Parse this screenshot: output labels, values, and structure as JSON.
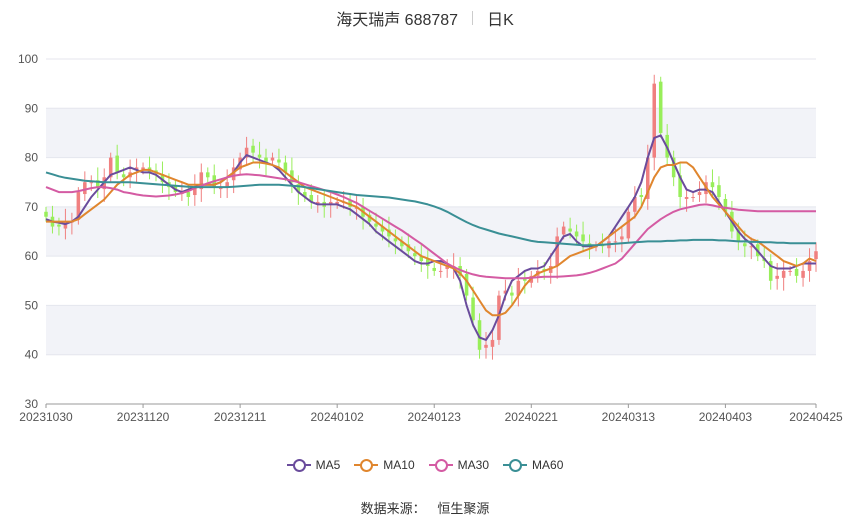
{
  "header": {
    "name": "海天瑞声 688787",
    "period": "日K"
  },
  "source": {
    "label": "数据来源：",
    "value": "恒生聚源"
  },
  "chart_data": {
    "type": "candlestick",
    "ylim": [
      30,
      100
    ],
    "y_ticks": [
      30,
      40,
      50,
      60,
      70,
      80,
      90,
      100
    ],
    "x_tick_labels": [
      "20231030",
      "20231120",
      "20231211",
      "20240102",
      "20240123",
      "20240221",
      "20240313",
      "20240403",
      "20240425"
    ],
    "x_tick_index": [
      0,
      15,
      30,
      45,
      60,
      75,
      90,
      105,
      119
    ],
    "up_color": "#f08080",
    "down_color": "#98ee5a",
    "grid": true,
    "legend_position": "bottom",
    "close_approx": [
      68,
      66,
      66,
      67,
      67,
      73,
      75,
      75,
      74,
      76,
      80,
      77,
      76,
      77,
      78,
      78,
      77,
      77,
      75,
      74,
      73,
      73,
      72,
      74,
      77,
      76,
      74,
      74,
      75,
      78,
      80,
      82,
      81,
      80,
      79,
      80,
      79,
      77,
      75,
      73,
      72,
      71,
      71,
      70,
      71,
      71,
      71,
      70,
      70,
      68,
      67,
      66,
      65,
      64,
      63,
      62,
      61,
      60,
      59,
      58,
      57,
      57,
      58,
      58,
      56,
      52,
      47,
      41,
      42,
      43,
      52,
      53,
      52,
      55,
      55,
      56,
      57,
      57,
      58,
      64,
      66,
      65,
      64,
      63,
      62,
      62,
      62,
      63,
      63,
      64,
      69,
      72,
      72,
      80,
      95,
      85,
      80,
      76,
      72,
      72,
      72,
      73,
      75,
      74,
      72,
      69,
      65,
      63,
      62,
      62,
      60,
      59,
      55,
      56,
      57,
      57,
      56,
      57,
      59,
      61
    ],
    "ma_series": [
      {
        "name": "MA5",
        "color": "#6a4c9c",
        "values": [
          67.5,
          67,
          66.8,
          66.5,
          67,
          68,
          70,
          72,
          73.5,
          75,
          76.5,
          77,
          77.5,
          78,
          77.5,
          77,
          77,
          76.5,
          75.5,
          74.5,
          73.5,
          73,
          73.5,
          74,
          74.5,
          74.5,
          74.5,
          75,
          76,
          77,
          79,
          80.5,
          80,
          79.5,
          79,
          78.5,
          77.5,
          76,
          74.5,
          73,
          72,
          71,
          70.5,
          70.5,
          70.5,
          70.5,
          70,
          69.5,
          68.5,
          67.5,
          66.5,
          65,
          64,
          63,
          62,
          61,
          60,
          59,
          58.5,
          58.5,
          59,
          59,
          58.5,
          57.5,
          55,
          50,
          46,
          43.5,
          43,
          45,
          48,
          52,
          55,
          56,
          57,
          57.5,
          57.5,
          58,
          60,
          62,
          64,
          64.5,
          63,
          62,
          62,
          62,
          63,
          64,
          66,
          68,
          70,
          72,
          75,
          80,
          84,
          84.5,
          82,
          79,
          76,
          73.5,
          73,
          73.5,
          73.5,
          73,
          71,
          69,
          67,
          65,
          63.5,
          62.5,
          61,
          59.5,
          58,
          57.5,
          57.5,
          57.5,
          58,
          58.5,
          58.5,
          58.5
        ]
      },
      {
        "name": "MA10",
        "color": "#e0862e",
        "values": [
          67,
          67,
          67,
          67,
          67,
          67.5,
          68.5,
          69.5,
          70.5,
          71.5,
          73,
          74.5,
          75.5,
          76.5,
          77,
          77.5,
          77.5,
          77,
          76.5,
          76,
          75.5,
          75,
          74.5,
          74.5,
          74.5,
          74.5,
          74.5,
          75,
          76,
          77,
          78,
          78.5,
          79,
          79,
          78.8,
          78.5,
          78,
          77,
          76,
          75,
          74,
          73.5,
          73,
          72.5,
          72,
          71.5,
          71,
          70.5,
          70,
          69,
          68,
          67,
          66,
          65,
          64,
          63,
          62,
          61,
          60,
          59.5,
          59,
          58.5,
          58,
          57.5,
          56.5,
          55,
          53,
          51,
          49,
          48,
          48,
          48.5,
          50,
          52,
          54,
          55.5,
          56.5,
          57,
          57.5,
          58,
          59,
          60,
          60.5,
          61,
          61.5,
          62,
          63,
          64,
          65,
          66,
          67,
          68,
          70,
          73,
          76,
          78,
          78.5,
          78.5,
          79,
          79,
          78,
          76,
          74,
          72,
          70.5,
          69,
          67.5,
          66,
          64.5,
          63.5,
          63,
          62,
          61,
          60,
          59,
          58.5,
          58,
          58.5,
          59.5,
          59
        ]
      },
      {
        "name": "MA30",
        "color": "#d45ba3",
        "values": [
          74,
          73.5,
          73,
          73,
          73,
          73.2,
          73.5,
          73.8,
          74,
          74,
          73.8,
          73.5,
          73,
          72.8,
          72.5,
          72.3,
          72.2,
          72.1,
          72.2,
          72.3,
          72.5,
          72.8,
          73.2,
          73.8,
          74.3,
          74.8,
          75.2,
          75.6,
          76,
          76.3,
          76.5,
          76.6,
          76.5,
          76.4,
          76.2,
          76,
          75.8,
          75.6,
          75.3,
          75,
          74.6,
          74.2,
          73.8,
          73.4,
          73,
          72.5,
          72,
          71.4,
          70.8,
          70,
          69.2,
          68.4,
          67.6,
          66.8,
          66,
          65.2,
          64.3,
          63.4,
          62.5,
          61.5,
          60.5,
          59.5,
          58.5,
          57.8,
          57.2,
          56.7,
          56.3,
          56,
          55.8,
          55.7,
          55.6,
          55.5,
          55.5,
          55.5,
          55.5,
          55.6,
          55.7,
          55.8,
          55.8,
          55.8,
          55.9,
          56,
          56.1,
          56.3,
          56.6,
          57,
          57.5,
          58,
          58.5,
          59.5,
          61,
          62.5,
          64,
          65.5,
          66.5,
          67.5,
          68.3,
          69,
          69.5,
          69.8,
          70.1,
          70.4,
          70.5,
          70.3,
          70,
          69.8,
          69.6,
          69.4,
          69.3,
          69.2,
          69.1,
          69.1,
          69.1,
          69.1,
          69.1,
          69.1,
          69.1,
          69.1,
          69.1,
          69.1
        ]
      },
      {
        "name": "MA60",
        "color": "#3a8f95",
        "values": [
          77,
          76.6,
          76.2,
          75.9,
          75.7,
          75.5,
          75.3,
          75.2,
          75.1,
          75,
          75,
          75,
          75,
          75,
          74.9,
          74.8,
          74.7,
          74.6,
          74.5,
          74.4,
          74.3,
          74.2,
          74.1,
          74,
          74,
          74,
          74,
          74,
          74,
          74.1,
          74.2,
          74.3,
          74.4,
          74.5,
          74.5,
          74.5,
          74.5,
          74.4,
          74.3,
          74.2,
          74,
          73.8,
          73.6,
          73.4,
          73.2,
          73,
          72.8,
          72.6,
          72.4,
          72.3,
          72.2,
          72.1,
          72,
          71.9,
          71.7,
          71.5,
          71.3,
          71.1,
          70.8,
          70.5,
          70.1,
          69.6,
          69,
          68.3,
          67.6,
          66.9,
          66.3,
          65.8,
          65.4,
          65,
          64.6,
          64.3,
          64,
          63.7,
          63.4,
          63.1,
          62.9,
          62.8,
          62.7,
          62.6,
          62.5,
          62.4,
          62.3,
          62.2,
          62.2,
          62.2,
          62.3,
          62.4,
          62.5,
          62.6,
          62.7,
          62.8,
          62.9,
          63,
          63,
          63,
          63.1,
          63.1,
          63.2,
          63.2,
          63.3,
          63.3,
          63.3,
          63.3,
          63.2,
          63.2,
          63.1,
          63,
          63,
          62.9,
          62.9,
          62.8,
          62.8,
          62.7,
          62.7,
          62.6,
          62.6,
          62.6,
          62.6,
          62.6
        ]
      }
    ]
  }
}
